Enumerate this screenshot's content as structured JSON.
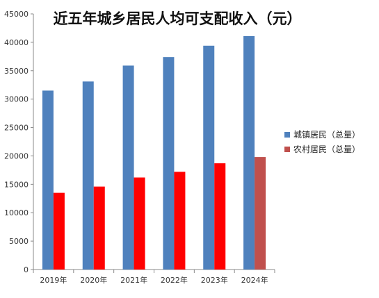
{
  "chart_data": {
    "type": "bar",
    "title": "近五年城乡居民人均可支配收入（元）",
    "categories": [
      "2019年",
      "2020年",
      "2021年",
      "2022年",
      "2023年",
      "2024年"
    ],
    "series": [
      {
        "name": "城镇居民（总量）",
        "values": [
          31500,
          33100,
          35900,
          37400,
          39400,
          41100
        ],
        "color": "#4f81bd",
        "point_colors": [
          "#4f81bd",
          "#4f81bd",
          "#4f81bd",
          "#4f81bd",
          "#4f81bd",
          "#4f81bd"
        ]
      },
      {
        "name": "农村居民（总量）",
        "values": [
          13500,
          14600,
          16200,
          17200,
          18700,
          19800
        ],
        "color": "#c0504d",
        "point_colors": [
          "#ff0000",
          "#ff0000",
          "#ff0000",
          "#ff0000",
          "#ff0000",
          "#c0504d"
        ]
      }
    ],
    "ylim": [
      0,
      45000
    ],
    "yticks": [
      0,
      5000,
      10000,
      15000,
      20000,
      25000,
      30000,
      35000,
      40000,
      45000
    ],
    "grid": false,
    "legend_position": "right"
  }
}
